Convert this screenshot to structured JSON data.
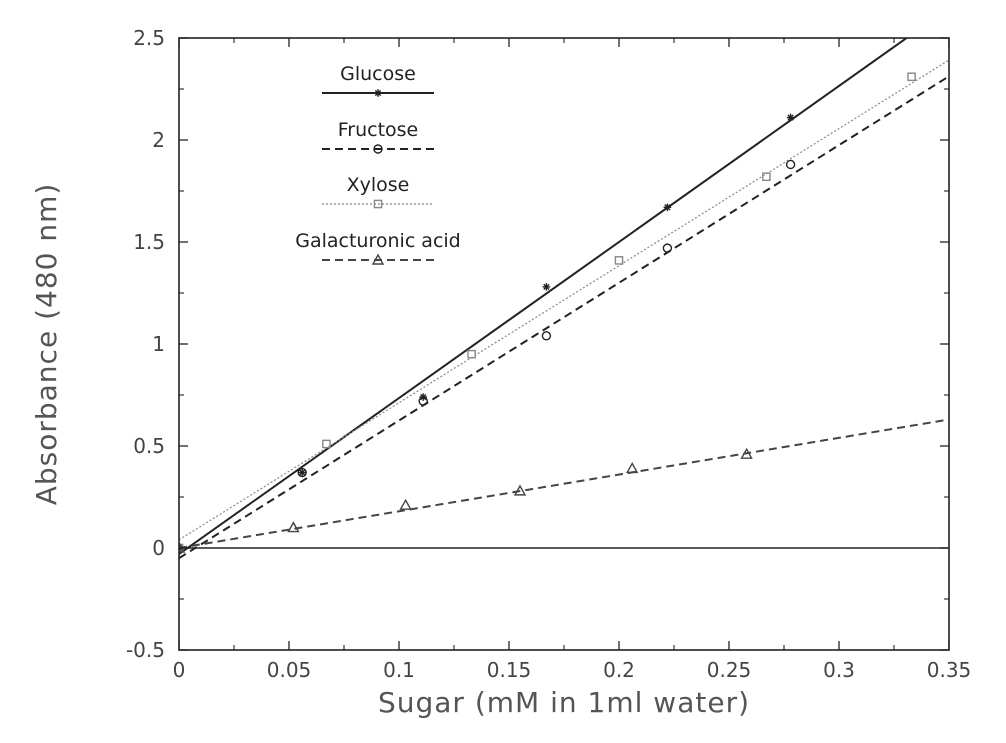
{
  "chart_data": {
    "type": "scatter",
    "title": "",
    "xlabel": "Sugar (mM in 1ml water)",
    "ylabel": "Absorbance (480 nm)",
    "xlim": [
      0,
      0.35
    ],
    "ylim": [
      -0.5,
      2.5
    ],
    "xticks": [
      0,
      0.05,
      0.1,
      0.15,
      0.2,
      0.25,
      0.3,
      0.35
    ],
    "xtick_labels": [
      "0",
      "0.05",
      "0.1",
      "0.15",
      "0.2",
      "0.25",
      "0.3",
      "0.35"
    ],
    "yticks": [
      -0.5,
      0,
      0.5,
      1,
      1.5,
      2,
      2.5
    ],
    "ytick_labels": [
      "-0.5",
      "0",
      "0.5",
      "1",
      "1.5",
      "2",
      "2.5"
    ],
    "zero_line": true,
    "grid": false,
    "legend_position": "top-left",
    "series": [
      {
        "name": "Glucose",
        "marker": "star",
        "line_style": "solid",
        "color": "#222222",
        "points": [
          [
            0,
            0
          ],
          [
            0.056,
            0.37
          ],
          [
            0.111,
            0.74
          ],
          [
            0.167,
            1.28
          ],
          [
            0.222,
            1.67
          ],
          [
            0.278,
            2.11
          ]
        ],
        "fit": {
          "slope": 7.65,
          "intercept": -0.03
        }
      },
      {
        "name": "Fructose",
        "marker": "circle",
        "line_style": "dashed",
        "color": "#222222",
        "points": [
          [
            0,
            0
          ],
          [
            0.056,
            0.37
          ],
          [
            0.111,
            0.72
          ],
          [
            0.167,
            1.04
          ],
          [
            0.222,
            1.47
          ],
          [
            0.278,
            1.88
          ]
        ],
        "fit": {
          "slope": 6.75,
          "intercept": -0.05
        }
      },
      {
        "name": "Xylose",
        "marker": "square",
        "line_style": "dotted",
        "color": "#888888",
        "points": [
          [
            0,
            0
          ],
          [
            0.067,
            0.51
          ],
          [
            0.133,
            0.95
          ],
          [
            0.2,
            1.41
          ],
          [
            0.267,
            1.82
          ],
          [
            0.333,
            2.31
          ]
        ],
        "fit": {
          "slope": 6.72,
          "intercept": 0.04
        }
      },
      {
        "name": "Galacturonic acid",
        "marker": "triangle",
        "line_style": "dashed",
        "color": "#444444",
        "points": [
          [
            0,
            0
          ],
          [
            0.052,
            0.1
          ],
          [
            0.103,
            0.21
          ],
          [
            0.155,
            0.28
          ],
          [
            0.206,
            0.39
          ],
          [
            0.258,
            0.46
          ]
        ],
        "fit": {
          "slope": 1.8,
          "intercept": 0.0
        }
      }
    ]
  }
}
